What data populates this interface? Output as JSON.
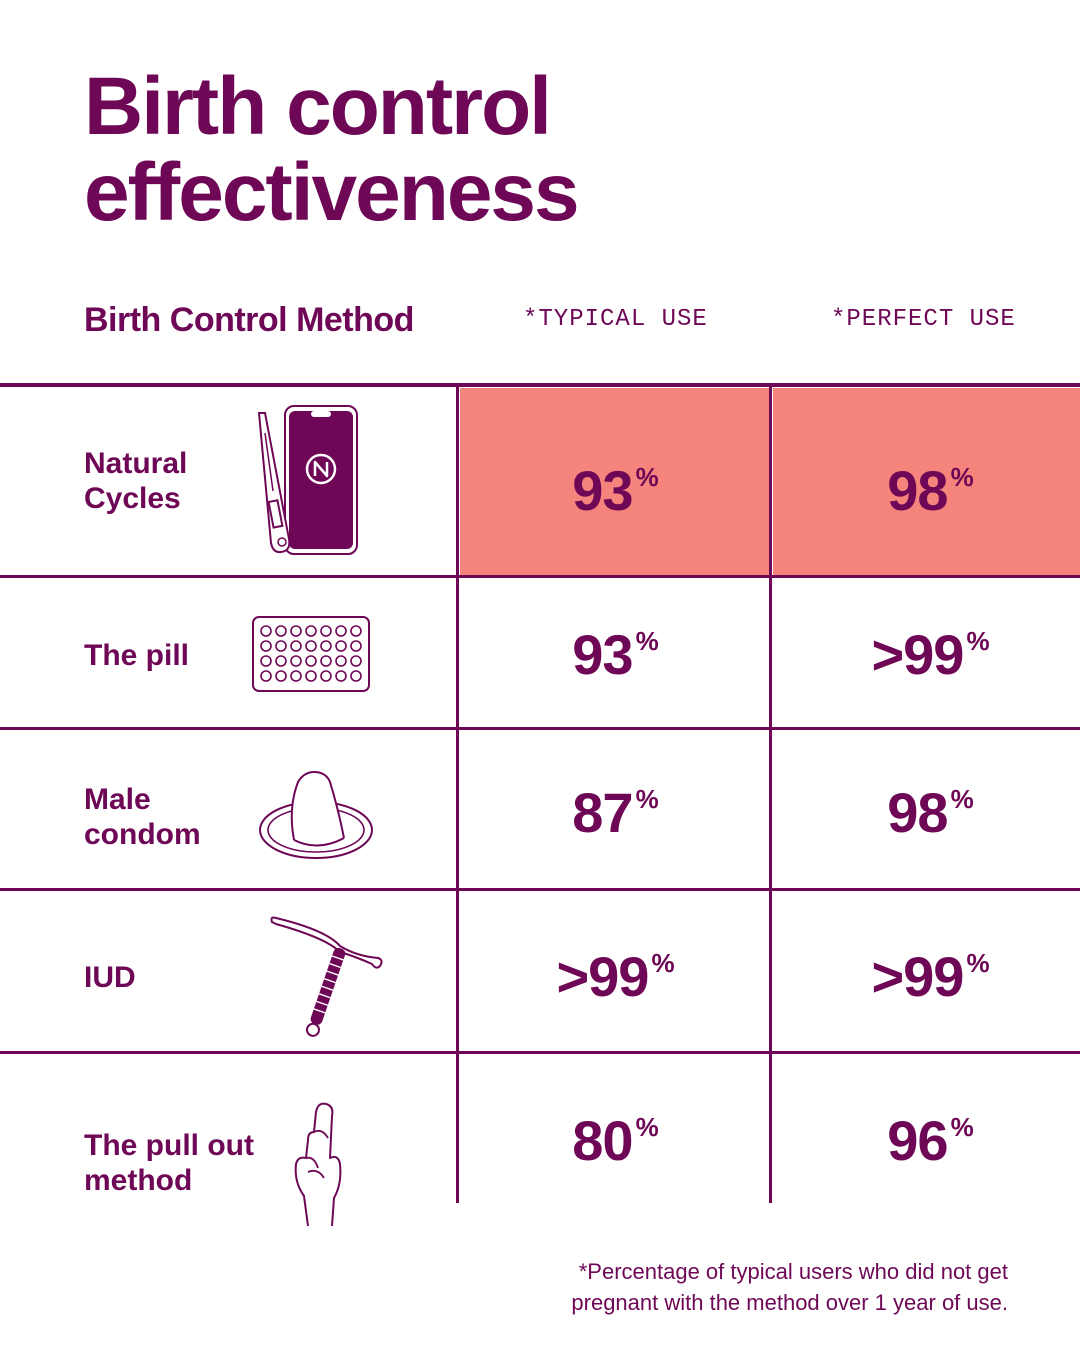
{
  "title": {
    "line1": "Birth control",
    "line2": "effectiveness"
  },
  "headers": {
    "method": "Birth Control Method",
    "typical": "*TYPICAL USE",
    "perfect": "*PERFECT USE"
  },
  "colors": {
    "primary": "#6e0756",
    "highlight": "#f5847d",
    "background": "#ffffff"
  },
  "chart_data": {
    "type": "table",
    "title": "Birth control effectiveness",
    "columns": [
      "Birth Control Method",
      "*TYPICAL USE",
      "*PERFECT USE"
    ],
    "unit": "%",
    "rows": [
      {
        "line1": "Natural",
        "line2": "Cycles",
        "typical": "93",
        "perfect": "98",
        "icon": "phone-thermometer-icon",
        "highlight": true
      },
      {
        "line1": "The pill",
        "line2": "",
        "typical": "93",
        "perfect": ">99",
        "icon": "pill-pack-icon",
        "highlight": false
      },
      {
        "line1": "Male",
        "line2": "condom",
        "typical": "87",
        "perfect": "98",
        "icon": "condom-icon",
        "highlight": false
      },
      {
        "line1": "IUD",
        "line2": "",
        "typical": ">99",
        "perfect": ">99",
        "icon": "iud-icon",
        "highlight": false
      },
      {
        "line1": "The pull out",
        "line2": "method",
        "typical": "80",
        "perfect": "96",
        "icon": "crossed-fingers-icon",
        "highlight": false
      }
    ]
  },
  "footnote": {
    "line1": "*Percentage of typical users who did not get",
    "line2": "pregnant with the method over 1 year of use."
  }
}
